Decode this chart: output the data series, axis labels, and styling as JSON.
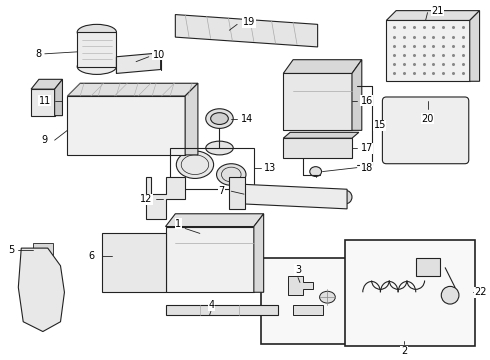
{
  "bg_color": "#ffffff",
  "fig_width": 4.9,
  "fig_height": 3.6,
  "dpi": 100,
  "line_color": "#222222",
  "label_color": "#000000",
  "font_size": 7.0
}
